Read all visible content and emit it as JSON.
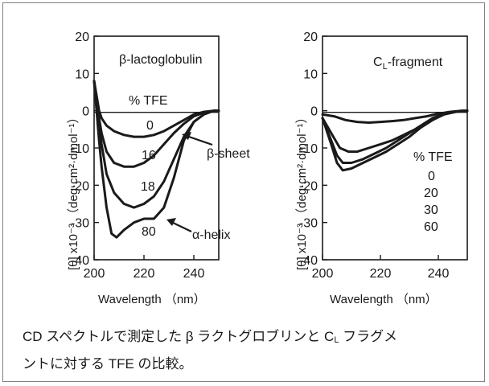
{
  "chart_data": [
    {
      "type": "line",
      "title": "β-lactoglobulin",
      "xlabel": "Wavelength （nm）",
      "ylabel": "[θ] x10⁻³ （deg·cm²·dmol⁻¹）",
      "xlim": [
        200,
        250
      ],
      "ylim": [
        -40,
        20
      ],
      "xticks": [
        200,
        220,
        240
      ],
      "yticks": [
        20,
        10,
        0,
        -10,
        -20,
        -30,
        -40
      ],
      "legend_title": "% TFE",
      "series": [
        {
          "name": "0",
          "x": [
            200,
            201,
            202,
            203,
            205,
            208,
            212,
            216,
            220,
            224,
            228,
            232,
            236,
            240,
            244,
            248,
            250
          ],
          "y": [
            8,
            4,
            0,
            -2,
            -4,
            -5.5,
            -6.5,
            -7,
            -7,
            -6.5,
            -5.5,
            -4,
            -2.5,
            -1,
            -0.3,
            0,
            0
          ]
        },
        {
          "name": "16",
          "x": [
            200,
            201,
            202,
            203,
            205,
            208,
            212,
            216,
            220,
            224,
            228,
            232,
            236,
            240,
            244,
            248,
            250
          ],
          "y": [
            8,
            3,
            -2,
            -6,
            -11,
            -14,
            -15,
            -15,
            -14,
            -12,
            -9,
            -6,
            -3.5,
            -1.5,
            -0.5,
            0,
            0
          ]
        },
        {
          "name": "18",
          "x": [
            200,
            201,
            202,
            203,
            205,
            208,
            212,
            216,
            220,
            224,
            228,
            232,
            236,
            240,
            244,
            248,
            250
          ],
          "y": [
            8,
            2,
            -4,
            -9,
            -17,
            -22,
            -25,
            -26,
            -25,
            -23,
            -19,
            -13,
            -7,
            -3,
            -1,
            0,
            0
          ]
        },
        {
          "name": "80",
          "x": [
            200,
            201,
            202,
            203,
            205,
            207,
            209,
            212,
            216,
            220,
            224,
            228,
            232,
            236,
            240,
            244,
            248,
            250
          ],
          "y": [
            8,
            0,
            -8,
            -15,
            -26,
            -33,
            -34,
            -32,
            -30,
            -29,
            -29,
            -26,
            -18,
            -8,
            -3,
            -1,
            0,
            0
          ]
        }
      ],
      "annotations": [
        "β-sheet",
        "α-helix"
      ]
    },
    {
      "type": "line",
      "title": "CL-fragment",
      "title_main": "C",
      "title_sub": "L",
      "title_rest": "-fragment",
      "xlabel": "Wavelength （nm）",
      "ylabel": "[θ] x10⁻³ （deg·cm²·dmol⁻¹）",
      "xlim": [
        200,
        250
      ],
      "ylim": [
        -40,
        20
      ],
      "xticks": [
        200,
        220,
        240
      ],
      "yticks": [
        20,
        10,
        0,
        -10,
        -20,
        -30,
        -40
      ],
      "legend_title": "% TFE",
      "series": [
        {
          "name": "0",
          "x": [
            200,
            204,
            208,
            212,
            216,
            220,
            224,
            228,
            232,
            236,
            240,
            244,
            248,
            250
          ],
          "y": [
            -1,
            -1.5,
            -2.5,
            -3,
            -3.2,
            -3,
            -2.8,
            -2.5,
            -2,
            -1.5,
            -0.8,
            -0.3,
            0,
            0
          ]
        },
        {
          "name": "20",
          "x": [
            200,
            203,
            206,
            209,
            212,
            216,
            220,
            224,
            228,
            232,
            236,
            240,
            244,
            248,
            250
          ],
          "y": [
            -2,
            -6,
            -10,
            -11,
            -11,
            -10,
            -9,
            -8,
            -6.5,
            -5,
            -3,
            -1.5,
            -0.5,
            0,
            0
          ]
        },
        {
          "name": "30",
          "x": [
            200,
            203,
            205,
            207,
            210,
            214,
            218,
            222,
            226,
            230,
            234,
            238,
            242,
            246,
            250
          ],
          "y": [
            -2,
            -8,
            -12,
            -14,
            -14,
            -13,
            -11.5,
            -10,
            -8,
            -6,
            -4,
            -2,
            -0.8,
            -0.2,
            0
          ]
        },
        {
          "name": "60",
          "x": [
            200,
            203,
            205,
            207,
            210,
            214,
            218,
            222,
            226,
            230,
            234,
            238,
            242,
            246,
            250
          ],
          "y": [
            -2,
            -9,
            -14,
            -16,
            -15.5,
            -14,
            -12.5,
            -11,
            -9,
            -7,
            -4.5,
            -2.5,
            -1,
            -0.3,
            0
          ]
        }
      ]
    }
  ],
  "caption": {
    "line1_a": "CD スペクトルで測定した β ラクトグロブリンと C",
    "line1_sub": "L",
    "line1_b": " フラグメ",
    "line2": "ントに対する TFE の比較。"
  }
}
